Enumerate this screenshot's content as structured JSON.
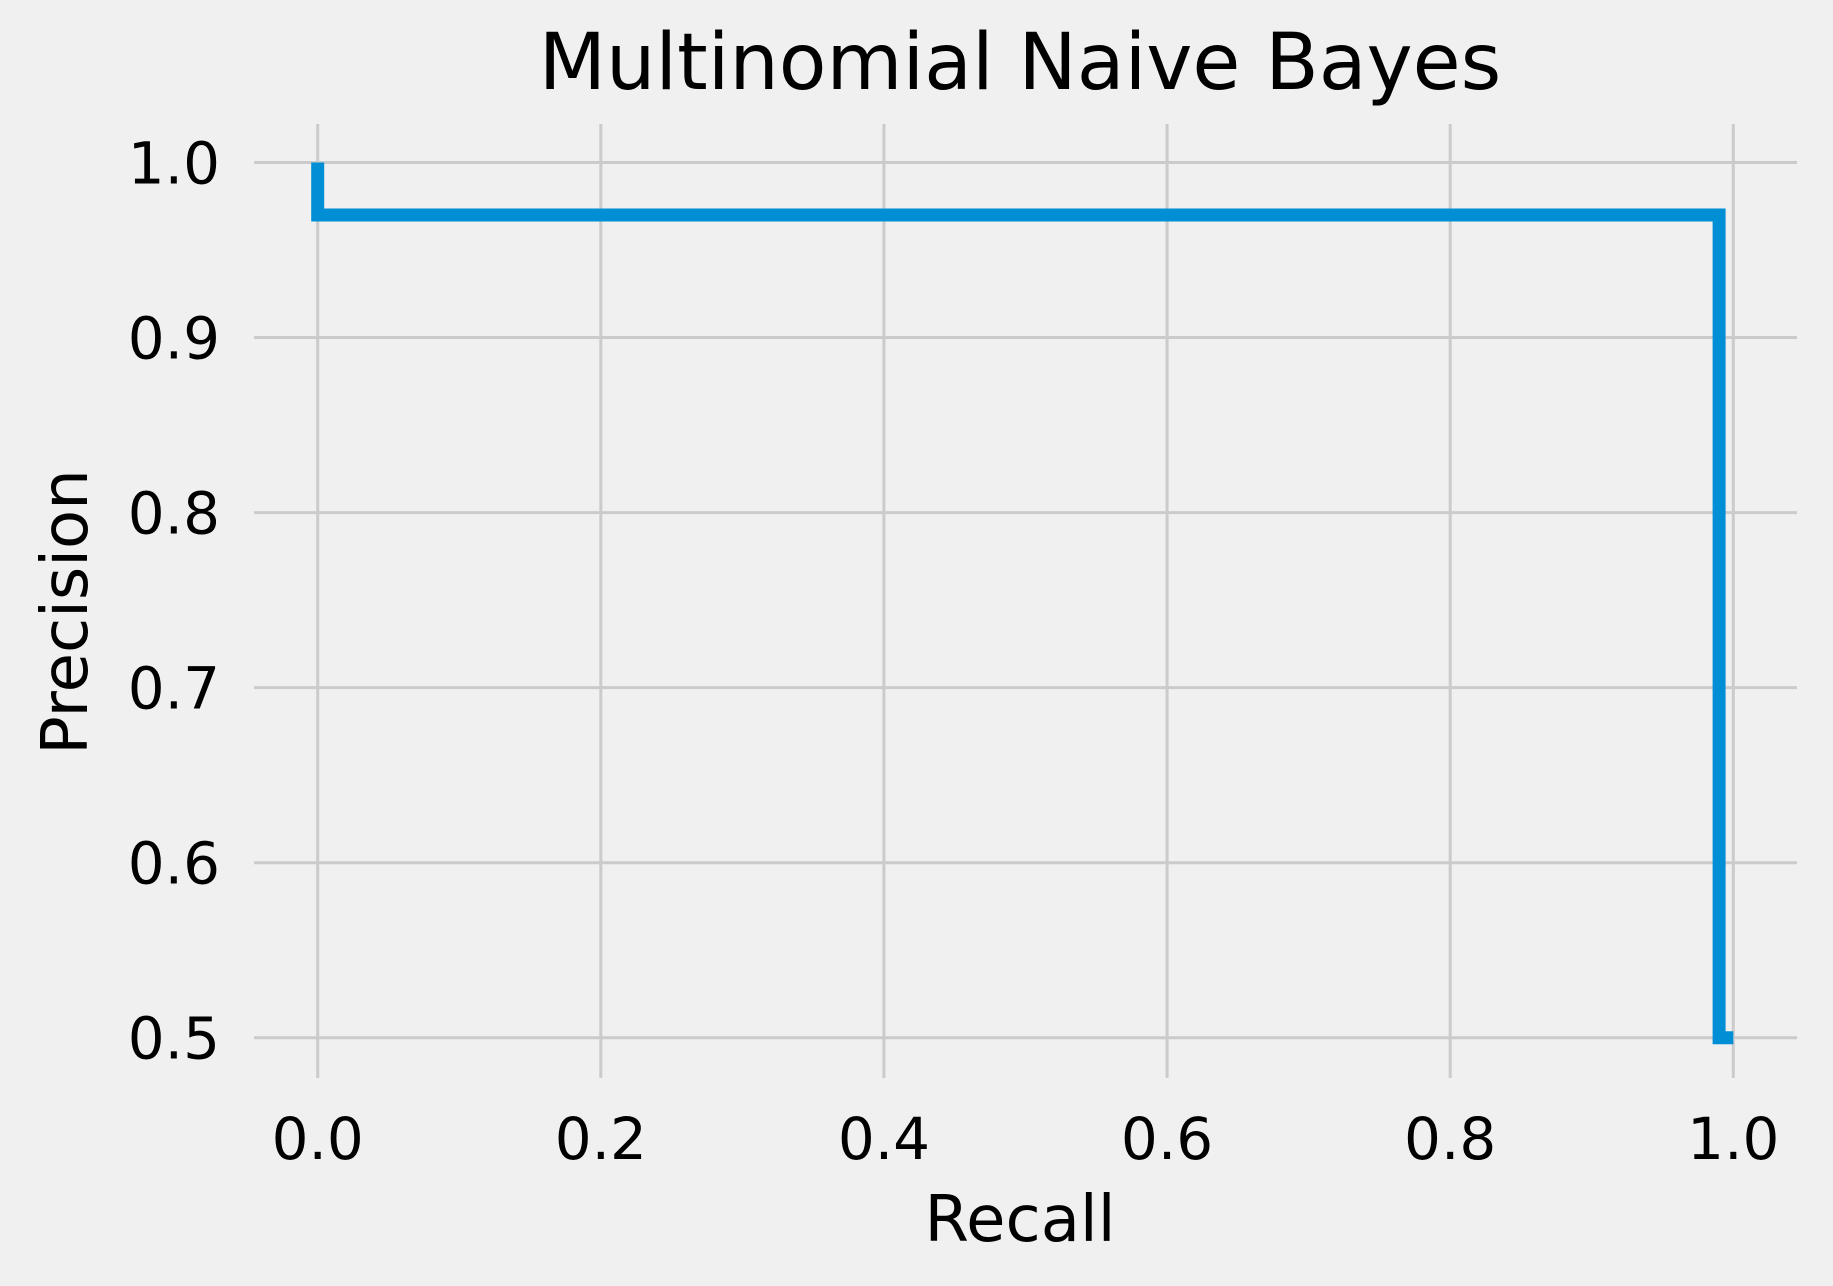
{
  "chart_data": {
    "type": "line",
    "title": "Multinomial Naive Bayes",
    "xlabel": "Recall",
    "ylabel": "Precision",
    "xlim": [
      -0.045,
      1.045
    ],
    "ylim": [
      0.477,
      1.022
    ],
    "xticks": [
      0.0,
      0.2,
      0.4,
      0.6,
      0.8,
      1.0
    ],
    "xtick_labels": [
      "0.0",
      "0.2",
      "0.4",
      "0.6",
      "0.8",
      "1.0"
    ],
    "yticks": [
      0.5,
      0.6,
      0.7,
      0.8,
      0.9,
      1.0
    ],
    "ytick_labels": [
      "0.5",
      "0.6",
      "0.7",
      "0.8",
      "0.9",
      "1.0"
    ],
    "grid": true,
    "series": [
      {
        "color": "#008fd5",
        "step": true,
        "x": [
          0.0,
          0.0,
          0.99,
          0.99,
          1.0
        ],
        "y": [
          1.0,
          0.97,
          0.97,
          0.5,
          0.5
        ]
      }
    ]
  }
}
